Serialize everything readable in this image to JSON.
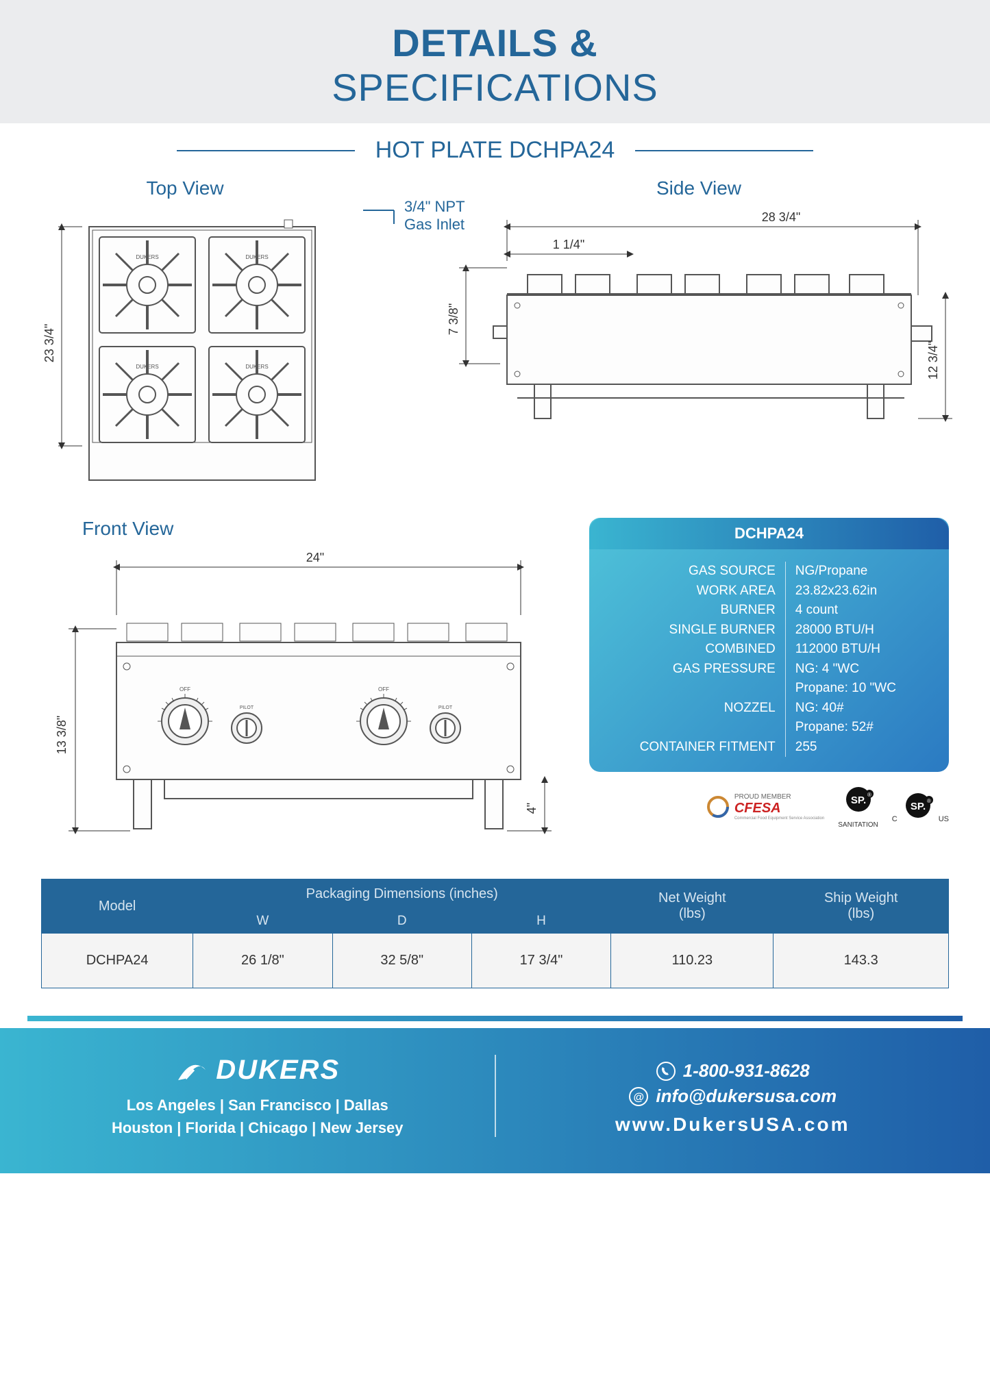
{
  "header": {
    "title": "DETAILS &",
    "subtitle": "SPECIFICATIONS",
    "product": "HOT PLATE DCHPA24"
  },
  "colors": {
    "primary": "#246699",
    "grad_start": "#3ab5d1",
    "grad_end": "#1f5ea8",
    "header_bg": "#ebecee"
  },
  "views": {
    "top": {
      "label": "Top View",
      "gas_inlet_l1": "3/4\" NPT",
      "gas_inlet_l2": "Gas Inlet",
      "dim_h": "23 3/4\""
    },
    "side": {
      "label": "Side View",
      "dim_w": "28  3/4\"",
      "dim_inset": "1  1/4\"",
      "dim_left_h": "7  3/8\"",
      "dim_right_h": "12  3/4\""
    },
    "front": {
      "label": "Front View",
      "dim_w": "24\"",
      "dim_h": "13 3/8\"",
      "dim_leg": "4\""
    }
  },
  "spec_card": {
    "model": "DCHPA24",
    "rows": [
      {
        "label": "GAS SOURCE",
        "value": "NG/Propane"
      },
      {
        "label": "WORK AREA",
        "value": "23.82x23.62in"
      },
      {
        "label": "BURNER",
        "value": "4 count"
      },
      {
        "label": "SINGLE BURNER",
        "value": "28000 BTU/H"
      },
      {
        "label": "COMBINED",
        "value": "112000 BTU/H"
      },
      {
        "label": "GAS PRESSURE",
        "value": "NG: 4 \"WC"
      },
      {
        "label": "",
        "value": "Propane: 10 \"WC"
      },
      {
        "label": "NOZZEL",
        "value": "NG: 40#"
      },
      {
        "label": "",
        "value": "Propane: 52#"
      },
      {
        "label": "CONTAINER FITMENT",
        "value": "255"
      }
    ]
  },
  "certs": {
    "cfesa_top": "PROUD MEMBER",
    "cfesa": "CFESA",
    "cfesa_sub": "Commercial Food Equipment Service Association",
    "csa1_sub": "SANITATION",
    "csa2_left": "C",
    "csa2_right": "US"
  },
  "pkg_table": {
    "headers": {
      "model": "Model",
      "pkg": "Packaging Dimensions (inches)",
      "w": "W",
      "d": "D",
      "h": "H",
      "net": "Net Weight\n(lbs)",
      "ship": "Ship Weight\n(lbs)"
    },
    "row": {
      "model": "DCHPA24",
      "w": "26 1/8\"",
      "d": "32 5/8\"",
      "h": "17 3/4\"",
      "net": "110.23",
      "ship": "143.3"
    }
  },
  "footer": {
    "brand": "DUKERS",
    "locations_l1": "Los Angeles | San Francisco | Dallas",
    "locations_l2": "Houston | Florida | Chicago | New Jersey",
    "phone": "1-800-931-8628",
    "email": "info@dukersusa.com",
    "website": "www.DukersUSA.com"
  }
}
